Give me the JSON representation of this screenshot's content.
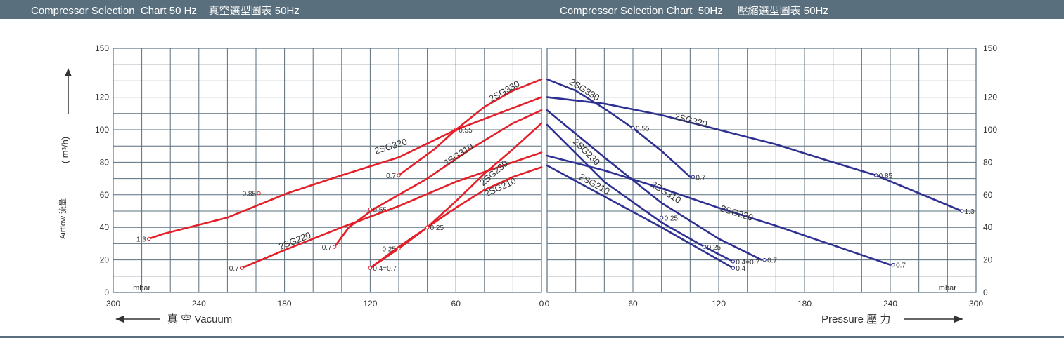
{
  "header": {
    "left_title": "Compressor Selection  Chart 50 Hz    真空選型圖表 50Hz",
    "right_title": "Compressor Selection Chart  50Hz     壓縮選型圖表 50Hz"
  },
  "colors": {
    "banner": "#5a6f7e",
    "grid": "#5a6f7e",
    "vacuum_series": "#e32028",
    "pressure_series": "#2e3192",
    "text": "#333333"
  },
  "chart_data": [
    {
      "type": "line",
      "title": "Compressor Selection  Chart 50 Hz    真空選型圖表 50Hz",
      "xlabel": "真 空 Vacuum",
      "ylabel": "( m³/h)",
      "ylabel_secondary": "Airflow 流量",
      "x_unit": "mbar",
      "x_reversed": true,
      "xlim": [
        300,
        0
      ],
      "ylim": [
        0,
        150
      ],
      "x_ticks": [
        300,
        240,
        180,
        120,
        60,
        0
      ],
      "y_ticks": [
        0,
        20,
        40,
        60,
        80,
        100,
        120,
        150
      ],
      "x_minor_step": 20,
      "y_minor_step": 10,
      "grid": true,
      "series": [
        {
          "name": "2SG320",
          "x": [
            275,
            265,
            220,
            178,
            140,
            100,
            60,
            30,
            0
          ],
          "y": [
            33,
            36,
            46,
            61,
            72,
            83,
            100,
            110,
            120
          ],
          "point_labels": [
            {
              "x": 275,
              "y": 33,
              "text": "1.3"
            },
            {
              "x": 198,
              "y": 61,
              "text": "0.85"
            },
            {
              "x": 60,
              "y": 100,
              "text": "0.55"
            }
          ],
          "name_pos": {
            "x": 105,
            "y": 88
          }
        },
        {
          "name": "2SG330",
          "x": [
            100,
            75,
            60,
            40,
            20,
            0
          ],
          "y": [
            72,
            88,
            100,
            114,
            124,
            131
          ],
          "point_labels": [
            {
              "x": 100,
              "y": 72,
              "text": "0.7"
            }
          ],
          "name_pos": {
            "x": 25,
            "y": 122
          }
        },
        {
          "name": "2SG310",
          "x": [
            145,
            135,
            118,
            80,
            50,
            20,
            0
          ],
          "y": [
            28,
            40,
            51,
            70,
            88,
            104,
            112
          ],
          "point_labels": [
            {
              "x": 145,
              "y": 28,
              "text": "0.7"
            },
            {
              "x": 120,
              "y": 51,
              "text": "0.55"
            }
          ],
          "name_pos": {
            "x": 57,
            "y": 83
          }
        },
        {
          "name": "2SG220",
          "x": [
            210,
            180,
            140,
            100,
            60,
            20,
            0
          ],
          "y": [
            15,
            26,
            40,
            53,
            68,
            80,
            86
          ],
          "point_labels": [
            {
              "x": 210,
              "y": 15,
              "text": "0.7"
            }
          ],
          "name_pos": {
            "x": 172,
            "y": 30
          }
        },
        {
          "name": "2SG230",
          "x": [
            120,
            100,
            80,
            60,
            40,
            20,
            0
          ],
          "y": [
            15,
            27,
            40,
            56,
            73,
            88,
            104
          ],
          "point_labels": [
            {
              "x": 100,
              "y": 27,
              "text": "0.25"
            }
          ],
          "name_pos": {
            "x": 32,
            "y": 72
          }
        },
        {
          "name": "2SG210",
          "x": [
            120,
            100,
            80,
            60,
            40,
            20,
            0
          ],
          "y": [
            15,
            28,
            40,
            52,
            63,
            71,
            77
          ],
          "point_labels": [
            {
              "x": 120,
              "y": 15,
              "text": "0.4=0.7"
            },
            {
              "x": 80,
              "y": 40,
              "text": "0.25"
            }
          ],
          "name_pos": {
            "x": 28,
            "y": 63
          }
        }
      ]
    },
    {
      "type": "line",
      "title": "Compressor Selection Chart  50Hz     壓縮選型圖表 50Hz",
      "xlabel": "Pressure 壓 力",
      "ylabel": "",
      "x_unit": "mbar",
      "xlim": [
        0,
        300
      ],
      "ylim": [
        0,
        150
      ],
      "x_ticks": [
        0,
        60,
        120,
        180,
        240,
        300
      ],
      "y_ticks": [
        0,
        20,
        40,
        60,
        80,
        100,
        120,
        150
      ],
      "x_minor_step": 20,
      "y_minor_step": 10,
      "grid": true,
      "series": [
        {
          "name": "2SG330",
          "x": [
            0,
            20,
            40,
            60,
            80,
            100
          ],
          "y": [
            131,
            124,
            113,
            101,
            87,
            71
          ],
          "point_labels": [
            {
              "x": 60,
              "y": 101,
              "text": "0.55"
            },
            {
              "x": 102,
              "y": 71,
              "text": "0.7"
            }
          ],
          "name_pos": {
            "x": 25,
            "y": 123
          }
        },
        {
          "name": "2SG320",
          "x": [
            0,
            40,
            80,
            120,
            160,
            200,
            230,
            260,
            290
          ],
          "y": [
            120,
            116,
            109,
            100,
            91,
            80,
            72,
            61,
            50
          ],
          "point_labels": [
            {
              "x": 230,
              "y": 72,
              "text": "0.85"
            },
            {
              "x": 290,
              "y": 50,
              "text": "1.3"
            }
          ],
          "name_pos": {
            "x": 100,
            "y": 104
          }
        },
        {
          "name": "2SG310",
          "x": [
            0,
            40,
            80,
            120,
            150
          ],
          "y": [
            112,
            83,
            55,
            33,
            20
          ],
          "point_labels": [
            {
              "x": 80,
              "y": 46,
              "text": "0.25"
            },
            {
              "x": 152,
              "y": 20,
              "text": "0.7"
            }
          ],
          "name_pos": {
            "x": 82,
            "y": 60
          }
        },
        {
          "name": "2SG230",
          "x": [
            0,
            40,
            80,
            110,
            130
          ],
          "y": [
            103,
            68,
            43,
            28,
            19
          ],
          "point_labels": [
            {
              "x": 110,
              "y": 28,
              "text": "0.25"
            },
            {
              "x": 130,
              "y": 19,
              "text": "0.4=0.7"
            }
          ],
          "name_pos": {
            "x": 26,
            "y": 85
          }
        },
        {
          "name": "2SG220",
          "x": [
            0,
            40,
            80,
            120,
            160,
            200,
            240
          ],
          "y": [
            84,
            75,
            64,
            52,
            41,
            29,
            17
          ],
          "point_labels": [
            {
              "x": 242,
              "y": 17,
              "text": "0.7"
            }
          ],
          "name_pos": {
            "x": 132,
            "y": 47
          }
        },
        {
          "name": "2SG210",
          "x": [
            0,
            40,
            80,
            110,
            130
          ],
          "y": [
            78,
            59,
            40,
            25,
            15
          ],
          "point_labels": [
            {
              "x": 130,
              "y": 15,
              "text": "0.4"
            }
          ],
          "name_pos": {
            "x": 32,
            "y": 65
          }
        }
      ]
    }
  ]
}
